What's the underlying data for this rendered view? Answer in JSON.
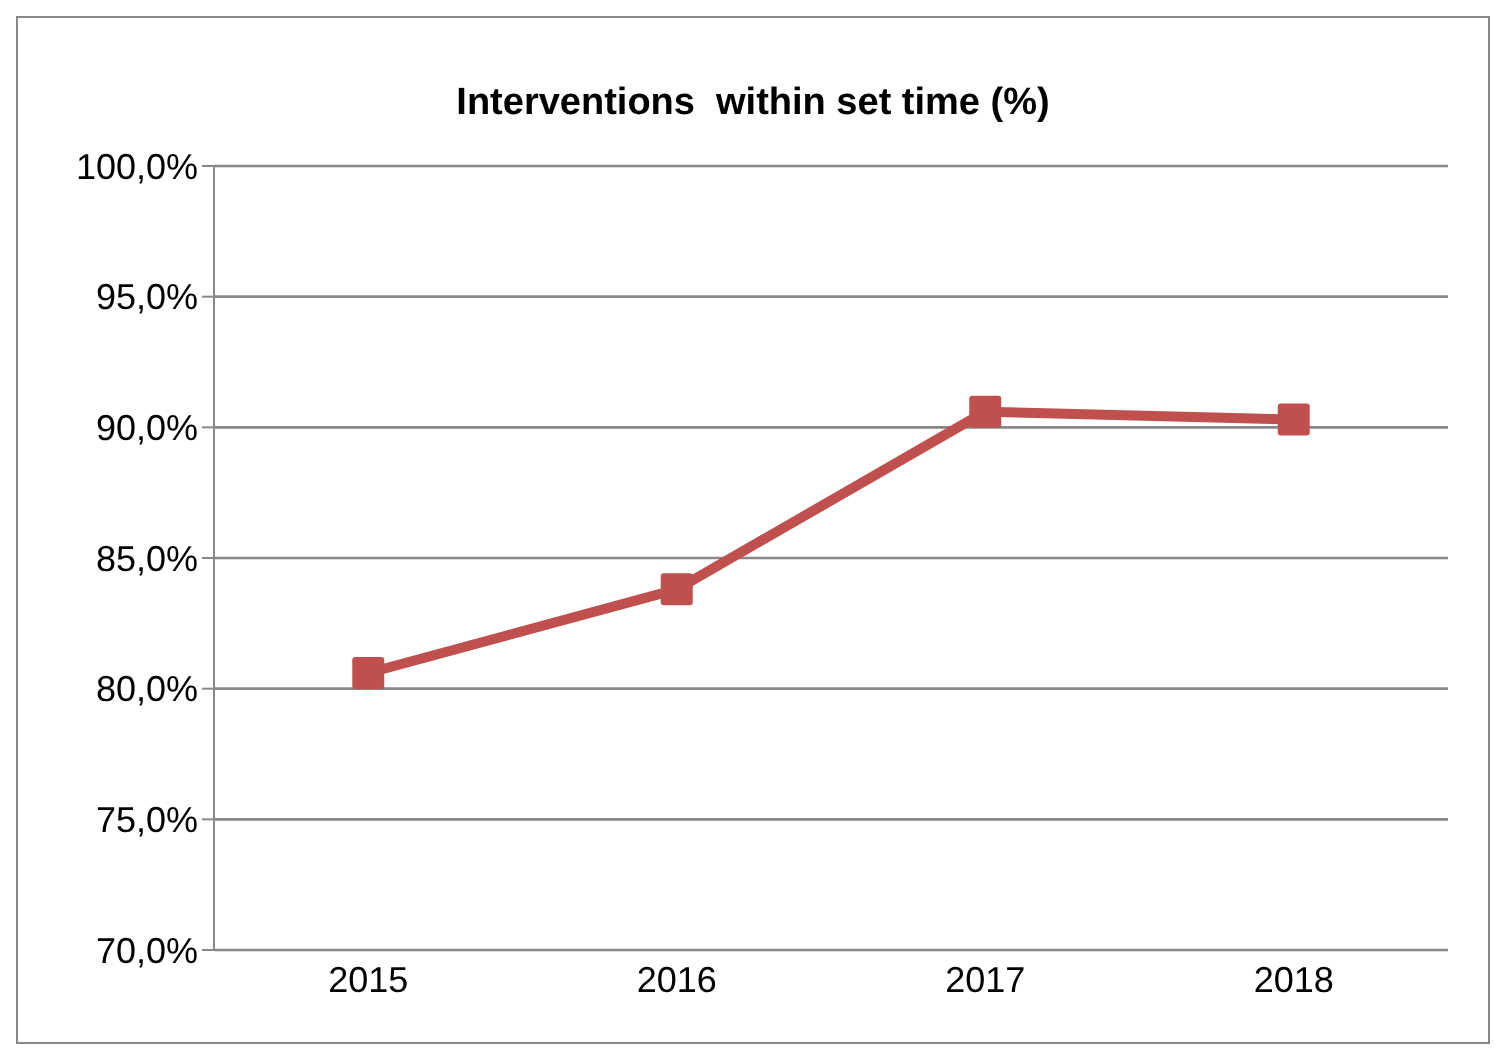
{
  "chart_data": {
    "type": "line",
    "title": "Interventions  within set time (%)",
    "categories": [
      "2015",
      "2016",
      "2017",
      "2018"
    ],
    "series": [
      {
        "color": "#c0504d",
        "values": [
          80.6,
          83.8,
          90.6,
          90.3
        ]
      }
    ],
    "ylim": [
      70,
      100
    ],
    "yticks": [
      {
        "value": 70,
        "label": "70,0%"
      },
      {
        "value": 75,
        "label": "75,0%"
      },
      {
        "value": 80,
        "label": "80,0%"
      },
      {
        "value": 85,
        "label": "85,0%"
      },
      {
        "value": 90,
        "label": "90,0%"
      },
      {
        "value": 95,
        "label": "95,0%"
      },
      {
        "value": 100,
        "label": "100,0%"
      }
    ],
    "grid": "y",
    "marker": "square",
    "line_style": "solid"
  }
}
